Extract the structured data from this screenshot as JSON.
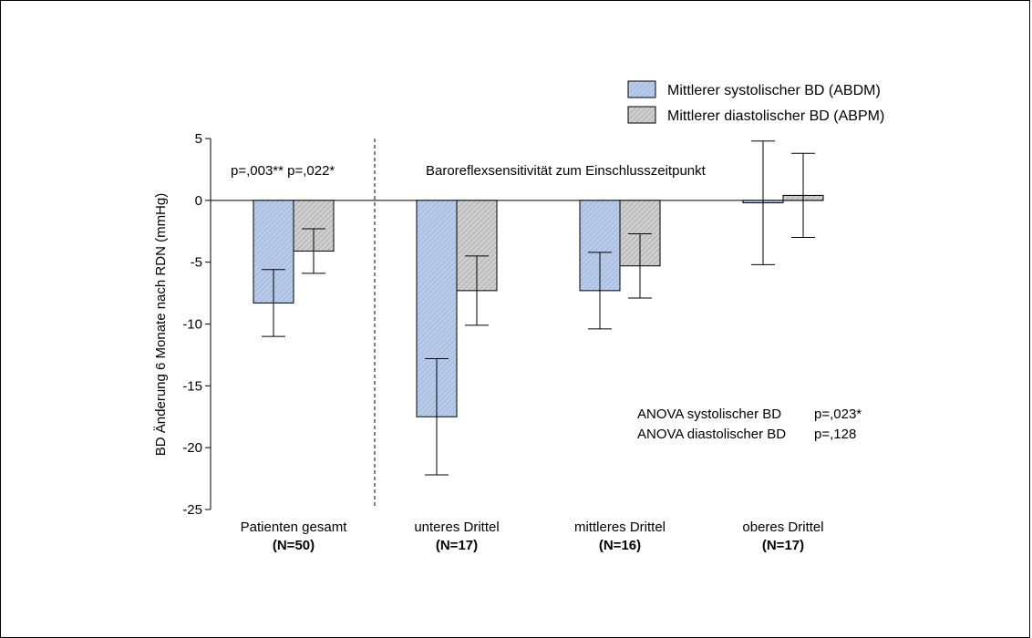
{
  "chart_data": {
    "type": "bar",
    "ylabel": "BD Änderung 6 Monate nach RDN (mmHg)",
    "ylim": [
      -25,
      5
    ],
    "yticks": [
      5,
      0,
      -5,
      -10,
      -15,
      -20,
      -25
    ],
    "categories": [
      {
        "label": "Patienten gesamt",
        "n": "(N=50)"
      },
      {
        "label": "unteres Drittel",
        "n": "(N=17)"
      },
      {
        "label": "mittleres Drittel",
        "n": "(N=16)"
      },
      {
        "label": "oberes Drittel",
        "n": "(N=17)"
      }
    ],
    "series": [
      {
        "name": "Mittlerer systolischer BD (ABDM)",
        "color": "#b8cbe9",
        "values": [
          -8.3,
          -17.5,
          -7.3,
          -0.2
        ],
        "errors": [
          2.7,
          4.7,
          3.1,
          5.0
        ]
      },
      {
        "name": "Mittlerer diastolischer BD (ABPM)",
        "color": "#c8c8c8",
        "values": [
          -4.1,
          -7.3,
          -5.3,
          0.4
        ],
        "errors": [
          1.8,
          2.8,
          2.6,
          3.4
        ]
      }
    ],
    "annotations": {
      "p_total": "p=,003** p=,022*",
      "group_title": "Baroreflexsensitivität zum Einschlusszeitpunkt",
      "anova_sys_label": "ANOVA systolischer BD",
      "anova_sys_p": "p=,023*",
      "anova_dia_label": "ANOVA diastolischer BD",
      "anova_dia_p": "p=,128"
    }
  }
}
